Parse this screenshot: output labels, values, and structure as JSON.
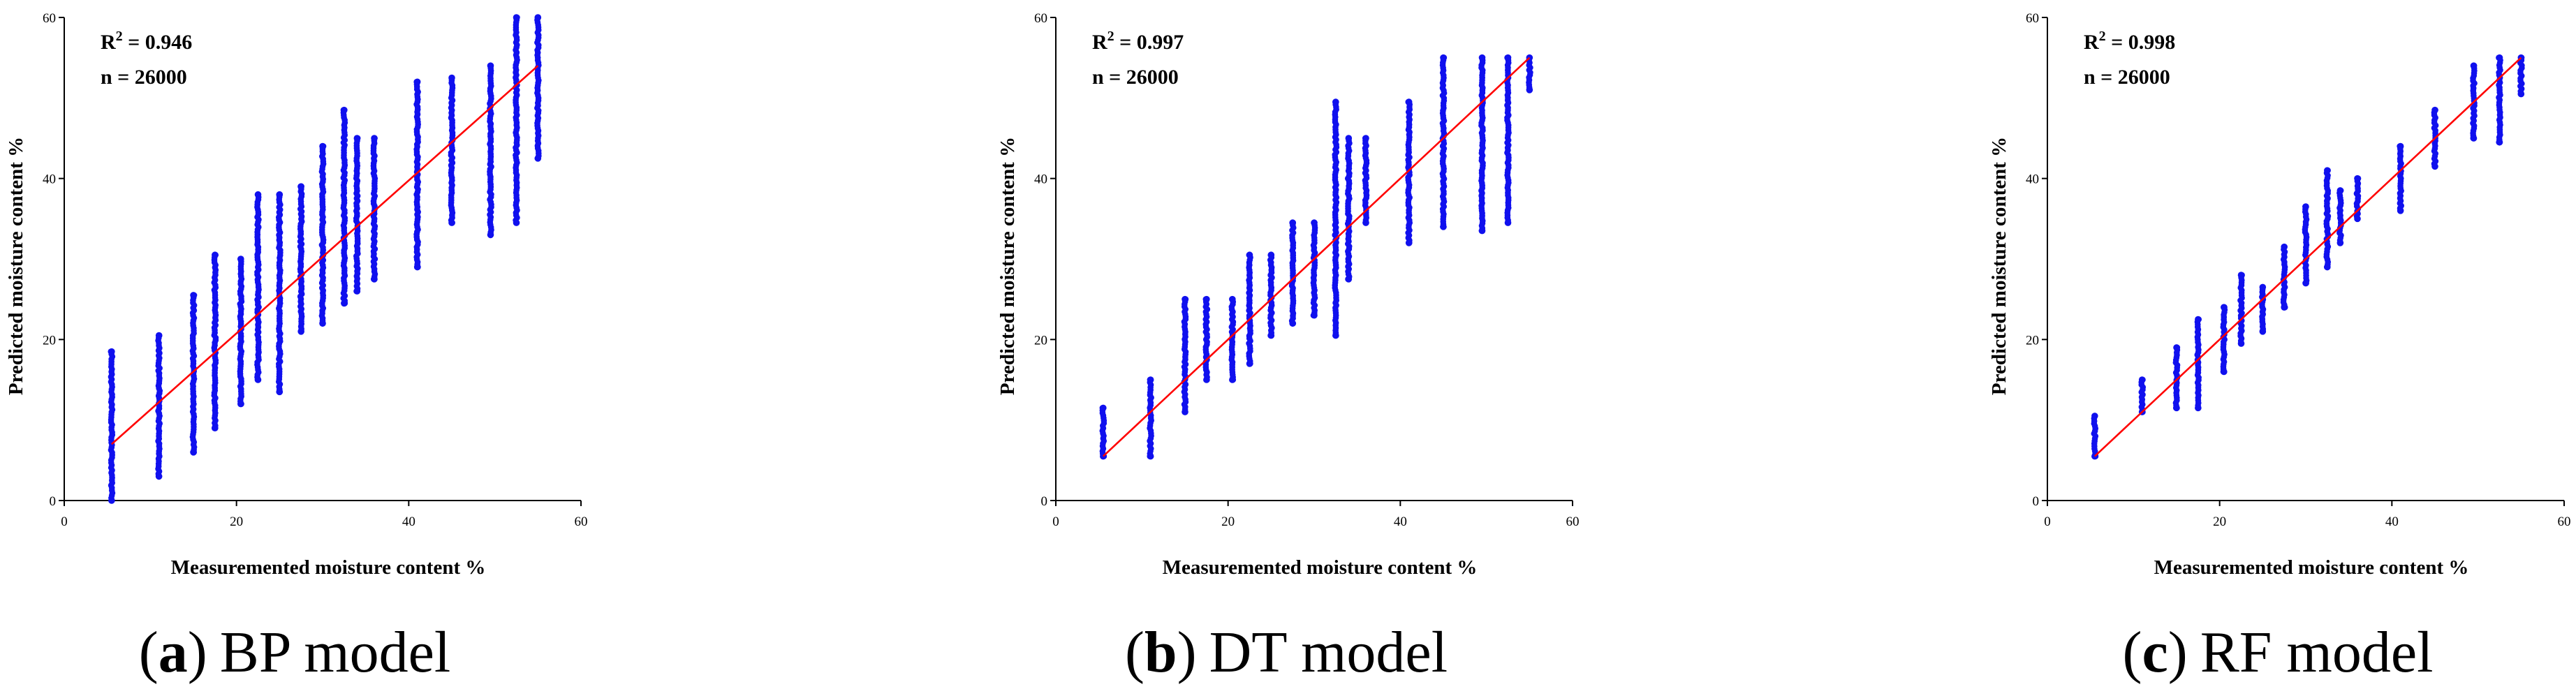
{
  "colors": {
    "points": "#1010ee",
    "fit_line": "#ff0000",
    "axis": "#000000"
  },
  "chart_data": [
    {
      "type": "scatter",
      "id": "a",
      "caption": {
        "letter": "a",
        "open": "(",
        "close": ")",
        "text": "BP model"
      },
      "xlabel": "Measuremented moisture content %",
      "ylabel": "Predicted moisture content %",
      "xlim": [
        0,
        60
      ],
      "ylim": [
        0,
        60
      ],
      "xticks": [
        0,
        20,
        40,
        60
      ],
      "yticks": [
        0,
        20,
        40,
        60
      ],
      "annotation": {
        "r2_prefix": "R",
        "r2_sup": "2",
        "r2_value": " = 0.946",
        "n_label": "n = 26000"
      },
      "fit_line": {
        "x": [
          5.5,
          55
        ],
        "y": [
          7,
          54
        ]
      },
      "columns": [
        {
          "x": 5.5,
          "ymin": 0,
          "ymax": 18.5
        },
        {
          "x": 11,
          "ymin": 3,
          "ymax": 20.5
        },
        {
          "x": 15,
          "ymin": 6,
          "ymax": 25.5
        },
        {
          "x": 17.5,
          "ymin": 9,
          "ymax": 30.5
        },
        {
          "x": 20.5,
          "ymin": 12,
          "ymax": 30
        },
        {
          "x": 22.5,
          "ymin": 15,
          "ymax": 38
        },
        {
          "x": 25,
          "ymin": 13.5,
          "ymax": 38
        },
        {
          "x": 27.5,
          "ymin": 21,
          "ymax": 39
        },
        {
          "x": 30,
          "ymin": 22,
          "ymax": 44
        },
        {
          "x": 32.5,
          "ymin": 24.5,
          "ymax": 48.5
        },
        {
          "x": 34,
          "ymin": 26,
          "ymax": 45
        },
        {
          "x": 36,
          "ymin": 27.5,
          "ymax": 45
        },
        {
          "x": 41,
          "ymin": 29,
          "ymax": 52
        },
        {
          "x": 45,
          "ymin": 34.5,
          "ymax": 52.5
        },
        {
          "x": 49.5,
          "ymin": 33,
          "ymax": 54
        },
        {
          "x": 52.5,
          "ymin": 34.5,
          "ymax": 60
        },
        {
          "x": 55,
          "ymin": 42.5,
          "ymax": 60
        }
      ]
    },
    {
      "type": "scatter",
      "id": "b",
      "caption": {
        "letter": "b",
        "open": "(",
        "close": ")",
        "text": "DT model"
      },
      "xlabel": "Measuremented moisture content %",
      "ylabel": "Predicted moisture content %",
      "xlim": [
        0,
        60
      ],
      "ylim": [
        0,
        60
      ],
      "xticks": [
        0,
        20,
        40,
        60
      ],
      "yticks": [
        0,
        20,
        40,
        60
      ],
      "annotation": {
        "r2_prefix": "R",
        "r2_sup": "2",
        "r2_value": " = 0.997",
        "n_label": "n = 26000"
      },
      "fit_line": {
        "x": [
          5.5,
          55
        ],
        "y": [
          5.5,
          55
        ]
      },
      "columns": [
        {
          "x": 5.5,
          "ymin": 5.5,
          "ymax": 11.5
        },
        {
          "x": 11,
          "ymin": 5.5,
          "ymax": 15
        },
        {
          "x": 15,
          "ymin": 11,
          "ymax": 25
        },
        {
          "x": 17.5,
          "ymin": 15,
          "ymax": 25
        },
        {
          "x": 20.5,
          "ymin": 15,
          "ymax": 25
        },
        {
          "x": 22.5,
          "ymin": 17,
          "ymax": 30.5
        },
        {
          "x": 25,
          "ymin": 20.5,
          "ymax": 30.5
        },
        {
          "x": 27.5,
          "ymin": 22,
          "ymax": 34.5
        },
        {
          "x": 30,
          "ymin": 23,
          "ymax": 34.5
        },
        {
          "x": 32.5,
          "ymin": 20.5,
          "ymax": 49.5
        },
        {
          "x": 34,
          "ymin": 27.5,
          "ymax": 45
        },
        {
          "x": 36,
          "ymin": 34.5,
          "ymax": 45
        },
        {
          "x": 41,
          "ymin": 32,
          "ymax": 49.5
        },
        {
          "x": 45,
          "ymin": 34,
          "ymax": 55
        },
        {
          "x": 49.5,
          "ymin": 33.5,
          "ymax": 55
        },
        {
          "x": 52.5,
          "ymin": 34.5,
          "ymax": 55
        },
        {
          "x": 55,
          "ymin": 51,
          "ymax": 55
        }
      ]
    },
    {
      "type": "scatter",
      "id": "c",
      "caption": {
        "letter": "c",
        "open": "(",
        "close": ")",
        "text": "RF model"
      },
      "xlabel": "Measuremented moisture content %",
      "ylabel": "Predicted moisture content %",
      "xlim": [
        0,
        60
      ],
      "ylim": [
        0,
        60
      ],
      "xticks": [
        0,
        20,
        40,
        60
      ],
      "yticks": [
        0,
        20,
        40,
        60
      ],
      "annotation": {
        "r2_prefix": "R",
        "r2_sup": "2",
        "r2_value": " = 0.998",
        "n_label": "n = 26000"
      },
      "fit_line": {
        "x": [
          5.5,
          55
        ],
        "y": [
          5.5,
          55
        ]
      },
      "columns": [
        {
          "x": 5.5,
          "ymin": 5.5,
          "ymax": 10.5
        },
        {
          "x": 11,
          "ymin": 11,
          "ymax": 15
        },
        {
          "x": 15,
          "ymin": 11.5,
          "ymax": 19
        },
        {
          "x": 17.5,
          "ymin": 11.5,
          "ymax": 22.5
        },
        {
          "x": 20.5,
          "ymin": 16,
          "ymax": 24
        },
        {
          "x": 22.5,
          "ymin": 19.5,
          "ymax": 28
        },
        {
          "x": 25,
          "ymin": 21,
          "ymax": 26.5
        },
        {
          "x": 27.5,
          "ymin": 24,
          "ymax": 31.5
        },
        {
          "x": 30,
          "ymin": 27,
          "ymax": 36.5
        },
        {
          "x": 32.5,
          "ymin": 29,
          "ymax": 41
        },
        {
          "x": 34,
          "ymin": 32,
          "ymax": 38.5
        },
        {
          "x": 36,
          "ymin": 35,
          "ymax": 40
        },
        {
          "x": 41,
          "ymin": 36,
          "ymax": 44
        },
        {
          "x": 45,
          "ymin": 41.5,
          "ymax": 48.5
        },
        {
          "x": 49.5,
          "ymin": 45,
          "ymax": 54
        },
        {
          "x": 52.5,
          "ymin": 44.5,
          "ymax": 55
        },
        {
          "x": 55,
          "ymin": 50.5,
          "ymax": 55
        }
      ]
    }
  ]
}
